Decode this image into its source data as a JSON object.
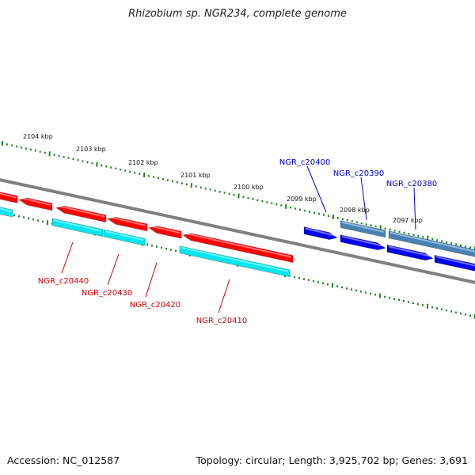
{
  "title": "Rhizobium sp. NGR234, complete genome",
  "footer": {
    "accession": "Accession: NC_012587",
    "summary": "Topology: circular; Length: 3,925,702 bp; Genes: 3,691"
  },
  "scale_ticks": [
    "2104 kbp",
    "2103 kbp",
    "2102 kbp",
    "2101 kbp",
    "2100 kbp",
    "2099 kbp",
    "2098 kbp",
    "2097 kbp"
  ],
  "gene_labels": {
    "reverse": [
      "NGR_c20440",
      "NGR_c20430",
      "NGR_c20420",
      "NGR_c20410"
    ],
    "forward": [
      "NGR_c20400",
      "NGR_c20390",
      "NGR_c20380"
    ]
  },
  "colors": {
    "reverse_gene": "#ff0000",
    "reverse_gene_shadow": "#b00000",
    "cds_cyan": "#00e5ee",
    "forward_gene": "#0000ee",
    "forward_gene_other": "#4682b4",
    "backbone": "#808080",
    "tick": "#1a8a1a",
    "reverse_label": "#cc0000",
    "forward_label": "#0000cc"
  }
}
